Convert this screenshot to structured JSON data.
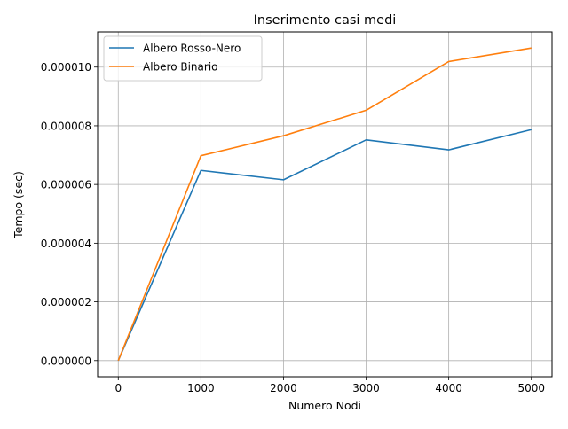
{
  "chart_data": {
    "type": "line",
    "title": "Inserimento casi medi",
    "xlabel": "Numero Nodi",
    "ylabel": "Tempo (sec)",
    "x": [
      0,
      1000,
      2000,
      3000,
      4000,
      5000
    ],
    "xlim": [
      -250,
      5250
    ],
    "ylim": [
      -5.5e-07,
      1.12e-05
    ],
    "xticks": [
      0,
      1000,
      2000,
      3000,
      4000,
      5000
    ],
    "xtick_labels": [
      "0",
      "1000",
      "2000",
      "3000",
      "4000",
      "5000"
    ],
    "yticks": [
      0,
      2e-06,
      4e-06,
      6e-06,
      8e-06,
      1e-05
    ],
    "ytick_labels": [
      "0.000000",
      "0.000002",
      "0.000004",
      "0.000006",
      "0.000008",
      "0.000010"
    ],
    "grid": true,
    "legend_position": "top-left",
    "series": [
      {
        "name": "Albero Rosso-Nero",
        "color": "#1f77b4",
        "values": [
          0,
          6.48e-06,
          6.16e-06,
          7.52e-06,
          7.18e-06,
          7.87e-06
        ]
      },
      {
        "name": "Albero Binario",
        "color": "#ff7f0e",
        "values": [
          0,
          6.98e-06,
          7.66e-06,
          8.53e-06,
          1.019e-05,
          1.065e-05
        ]
      }
    ]
  }
}
